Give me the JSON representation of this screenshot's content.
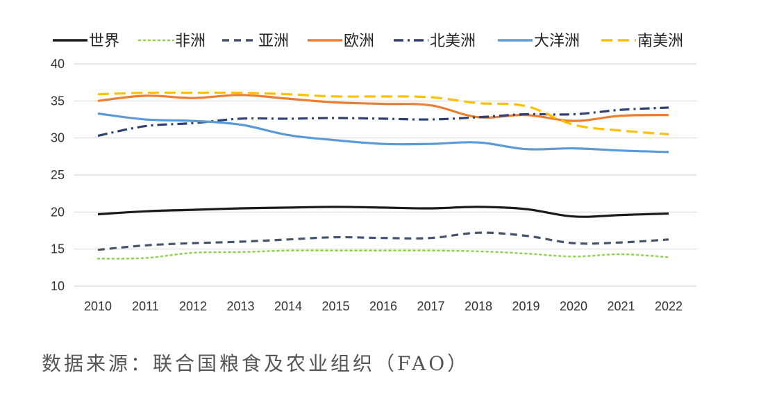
{
  "source_note": "数据来源：联合国粮食及农业组织（FAO）",
  "chart_data": {
    "type": "line",
    "title": "",
    "xlabel": "",
    "ylabel": "",
    "x": [
      "2010",
      "2011",
      "2012",
      "2013",
      "2014",
      "2015",
      "2016",
      "2017",
      "2018",
      "2019",
      "2020",
      "2021",
      "2022"
    ],
    "yticks": [
      "10",
      "15",
      "20",
      "25",
      "30",
      "35",
      "40"
    ],
    "ylim": [
      10,
      40
    ],
    "grid": true,
    "legend_position": "top",
    "series": [
      {
        "name": "世界",
        "color": "#1a1a1a",
        "style": "solid",
        "values": [
          19.7,
          20.1,
          20.3,
          20.5,
          20.6,
          20.7,
          20.6,
          20.5,
          20.7,
          20.4,
          19.4,
          19.6,
          19.8
        ]
      },
      {
        "name": "非洲",
        "color": "#92d050",
        "style": "dotted",
        "values": [
          13.7,
          13.8,
          14.5,
          14.6,
          14.8,
          14.8,
          14.8,
          14.8,
          14.7,
          14.4,
          14.0,
          14.3,
          13.9
        ]
      },
      {
        "name": "亚洲",
        "color": "#44546a",
        "style": "dashed",
        "values": [
          14.9,
          15.5,
          15.8,
          16.0,
          16.3,
          16.6,
          16.5,
          16.5,
          17.2,
          16.8,
          15.8,
          15.9,
          16.3
        ]
      },
      {
        "name": "欧洲",
        "color": "#ed7d31",
        "style": "solid",
        "values": [
          35.0,
          35.7,
          35.4,
          35.8,
          35.3,
          34.8,
          34.6,
          34.4,
          32.8,
          33.1,
          32.3,
          33.0,
          33.1
        ]
      },
      {
        "name": "北美洲",
        "color": "#2f4172",
        "style": "dashdot",
        "values": [
          30.3,
          31.6,
          32.0,
          32.6,
          32.6,
          32.7,
          32.6,
          32.5,
          32.8,
          33.2,
          33.2,
          33.8,
          34.1
        ]
      },
      {
        "name": "大洋洲",
        "color": "#5b9bd5",
        "style": "solid",
        "values": [
          33.3,
          32.5,
          32.3,
          31.8,
          30.4,
          29.7,
          29.2,
          29.2,
          29.4,
          28.5,
          28.6,
          28.3,
          28.1
        ]
      },
      {
        "name": "南美洲",
        "color": "#ffc000",
        "style": "longdash",
        "values": [
          35.9,
          36.1,
          36.1,
          36.1,
          35.9,
          35.6,
          35.6,
          35.5,
          34.7,
          34.3,
          31.8,
          31.0,
          30.5
        ]
      }
    ]
  }
}
